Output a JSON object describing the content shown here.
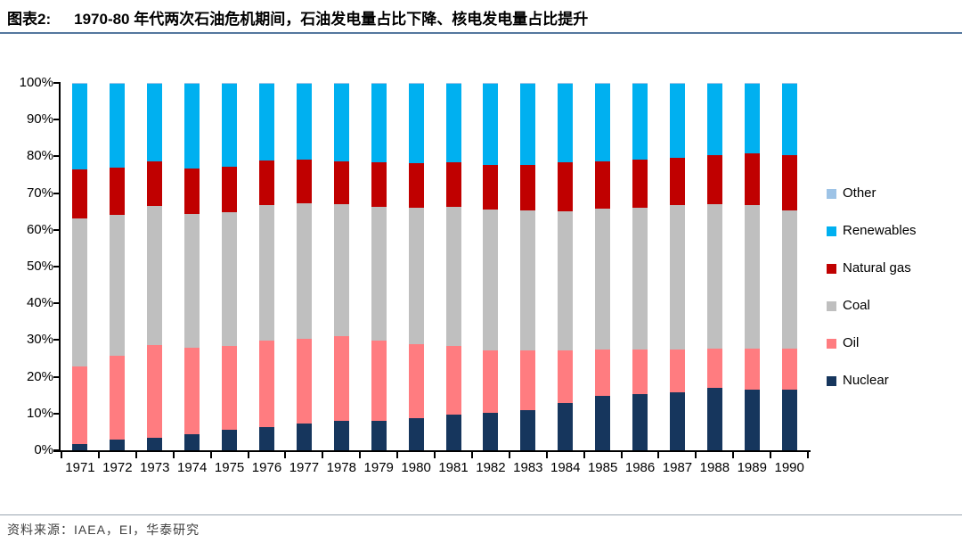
{
  "header": {
    "tag": "图表2:",
    "title": "1970-80 年代两次石油危机期间，石油发电量占比下降、核电发电量占比提升"
  },
  "footer": {
    "source": "资料来源：IAEA，EI，华泰研究"
  },
  "chart_data": {
    "type": "bar",
    "stacked": true,
    "title": "1970-80 年代两次石油危机期间，石油发电量占比下降、核电发电量占比提升",
    "xlabel": "",
    "ylabel": "",
    "ylim": [
      0,
      100
    ],
    "y_ticks": [
      "100%",
      "90%",
      "80%",
      "70%",
      "60%",
      "50%",
      "40%",
      "30%",
      "20%",
      "10%",
      "0%"
    ],
    "grid": false,
    "legend_position": "right",
    "legend_order": [
      "Other",
      "Renewables",
      "Natural gas",
      "Coal",
      "Oil",
      "Nuclear"
    ],
    "categories": [
      1971,
      1972,
      1973,
      1974,
      1975,
      1976,
      1977,
      1978,
      1979,
      1980,
      1981,
      1982,
      1983,
      1984,
      1985,
      1986,
      1987,
      1988,
      1989,
      1990
    ],
    "series": [
      {
        "name": "Nuclear",
        "color": "#16365d",
        "values": [
          1.8,
          2.8,
          3.4,
          4.3,
          5.7,
          6.3,
          7.2,
          8.0,
          8.1,
          8.7,
          9.8,
          10.3,
          11.0,
          12.9,
          14.8,
          15.2,
          15.7,
          16.9,
          16.6,
          16.6
        ]
      },
      {
        "name": "Oil",
        "color": "#ff7c80",
        "values": [
          21.0,
          23.0,
          25.2,
          23.7,
          22.6,
          23.5,
          23.2,
          23.0,
          21.7,
          20.1,
          18.6,
          16.9,
          16.2,
          14.4,
          12.6,
          12.3,
          11.7,
          10.8,
          11.0,
          11.1
        ]
      },
      {
        "name": "Coal",
        "color": "#bfbfbf",
        "values": [
          40.2,
          38.2,
          37.8,
          36.4,
          36.5,
          37.0,
          36.9,
          36.0,
          36.4,
          37.3,
          37.9,
          38.4,
          38.2,
          37.7,
          38.5,
          38.6,
          39.3,
          39.4,
          39.1,
          37.6
        ]
      },
      {
        "name": "Natural gas",
        "color": "#c00000",
        "values": [
          13.5,
          13.0,
          12.2,
          12.2,
          12.3,
          12.2,
          11.9,
          11.7,
          12.3,
          12.1,
          12.0,
          12.2,
          12.4,
          13.5,
          12.8,
          13.0,
          13.0,
          13.2,
          14.2,
          15.0
        ]
      },
      {
        "name": "Renewables",
        "color": "#00b0f0",
        "values": [
          23.2,
          22.7,
          21.1,
          23.1,
          22.6,
          20.7,
          20.5,
          21.0,
          21.2,
          21.5,
          21.4,
          21.9,
          21.9,
          21.2,
          21.0,
          20.6,
          20.0,
          19.4,
          18.8,
          19.4
        ]
      },
      {
        "name": "Other",
        "color": "#9dc3e6",
        "values": [
          0.3,
          0.3,
          0.3,
          0.3,
          0.3,
          0.3,
          0.3,
          0.3,
          0.3,
          0.3,
          0.3,
          0.3,
          0.3,
          0.3,
          0.3,
          0.3,
          0.3,
          0.3,
          0.3,
          0.3
        ]
      }
    ]
  }
}
